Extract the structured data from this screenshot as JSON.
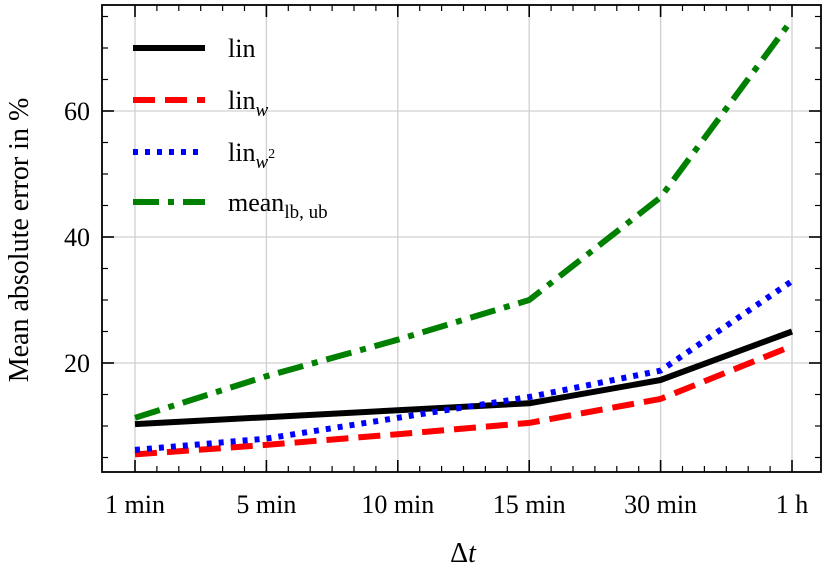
{
  "chart_data": {
    "type": "line",
    "categories": [
      "1 min",
      "5 min",
      "10 min",
      "15 min",
      "30 min",
      "1 h"
    ],
    "xlabel_base": "Δ",
    "xlabel_var": "t",
    "ylabel": "Mean absolute error in %",
    "ylim": [
      0,
      75
    ],
    "yticks": [
      20,
      40,
      60
    ],
    "grid": true,
    "legend_position": "top-left",
    "series": [
      {
        "name": "lin",
        "name_sub": "",
        "name_sup": "",
        "color": "#000000",
        "style": "solid",
        "values": [
          10.3,
          11.4,
          12.5,
          13.6,
          17.3,
          25.0
        ]
      },
      {
        "name": "lin",
        "name_sub": "w",
        "name_sup": "",
        "color": "#ff0000",
        "style": "dashed",
        "values": [
          5.5,
          7.0,
          8.7,
          10.5,
          14.3,
          22.7
        ]
      },
      {
        "name": "lin",
        "name_sub": "w",
        "name_sup": "2",
        "color": "#0000ff",
        "style": "dotted",
        "values": [
          6.2,
          8.0,
          11.3,
          14.6,
          18.8,
          33.0
        ]
      },
      {
        "name": "mean",
        "name_sub": "lb, ub",
        "name_sup": "",
        "color": "#008000",
        "style": "dashdot",
        "values": [
          11.3,
          17.9,
          23.7,
          30.0,
          46.3,
          74.5
        ]
      }
    ]
  }
}
